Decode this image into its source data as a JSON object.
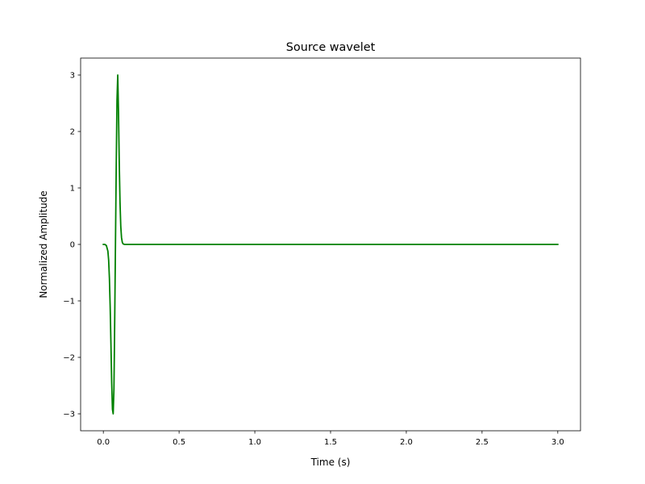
{
  "chart_data": {
    "type": "line",
    "title": "Source wavelet",
    "xlabel": "Time (s)",
    "ylabel": "Normalized Amplitude",
    "xlim": [
      -0.15,
      3.15
    ],
    "ylim": [
      -3.3,
      3.3
    ],
    "x_ticks": [
      0.0,
      0.5,
      1.0,
      1.5,
      2.0,
      2.5,
      3.0
    ],
    "x_tick_labels": [
      "0.0",
      "0.5",
      "1.0",
      "1.5",
      "2.0",
      "2.5",
      "3.0"
    ],
    "y_ticks": [
      -3,
      -2,
      -1,
      0,
      1,
      2,
      3
    ],
    "y_tick_labels": [
      "−3",
      "−2",
      "−1",
      "0",
      "1",
      "2",
      "3"
    ],
    "grid": false,
    "series": [
      {
        "color": "#008000",
        "x": [
          0.0,
          0.01,
          0.02,
          0.03,
          0.035,
          0.04,
          0.045,
          0.05,
          0.055,
          0.06,
          0.065,
          0.07,
          0.075,
          0.08,
          0.085,
          0.09,
          0.095,
          0.1,
          0.105,
          0.11,
          0.115,
          0.12,
          0.125,
          0.13,
          0.14,
          0.15,
          0.2,
          0.5,
          1.0,
          1.5,
          2.0,
          2.5,
          3.0
        ],
        "y": [
          0.0,
          0.0,
          -0.02,
          -0.12,
          -0.28,
          -0.6,
          -1.1,
          -1.75,
          -2.45,
          -2.92,
          -3.0,
          -2.55,
          -1.35,
          0.0,
          1.35,
          2.55,
          3.0,
          2.35,
          1.45,
          0.75,
          0.32,
          0.12,
          0.04,
          0.01,
          0.0,
          0.0,
          0.0,
          0.0,
          0.0,
          0.0,
          0.0,
          0.0,
          0.0
        ]
      }
    ]
  }
}
